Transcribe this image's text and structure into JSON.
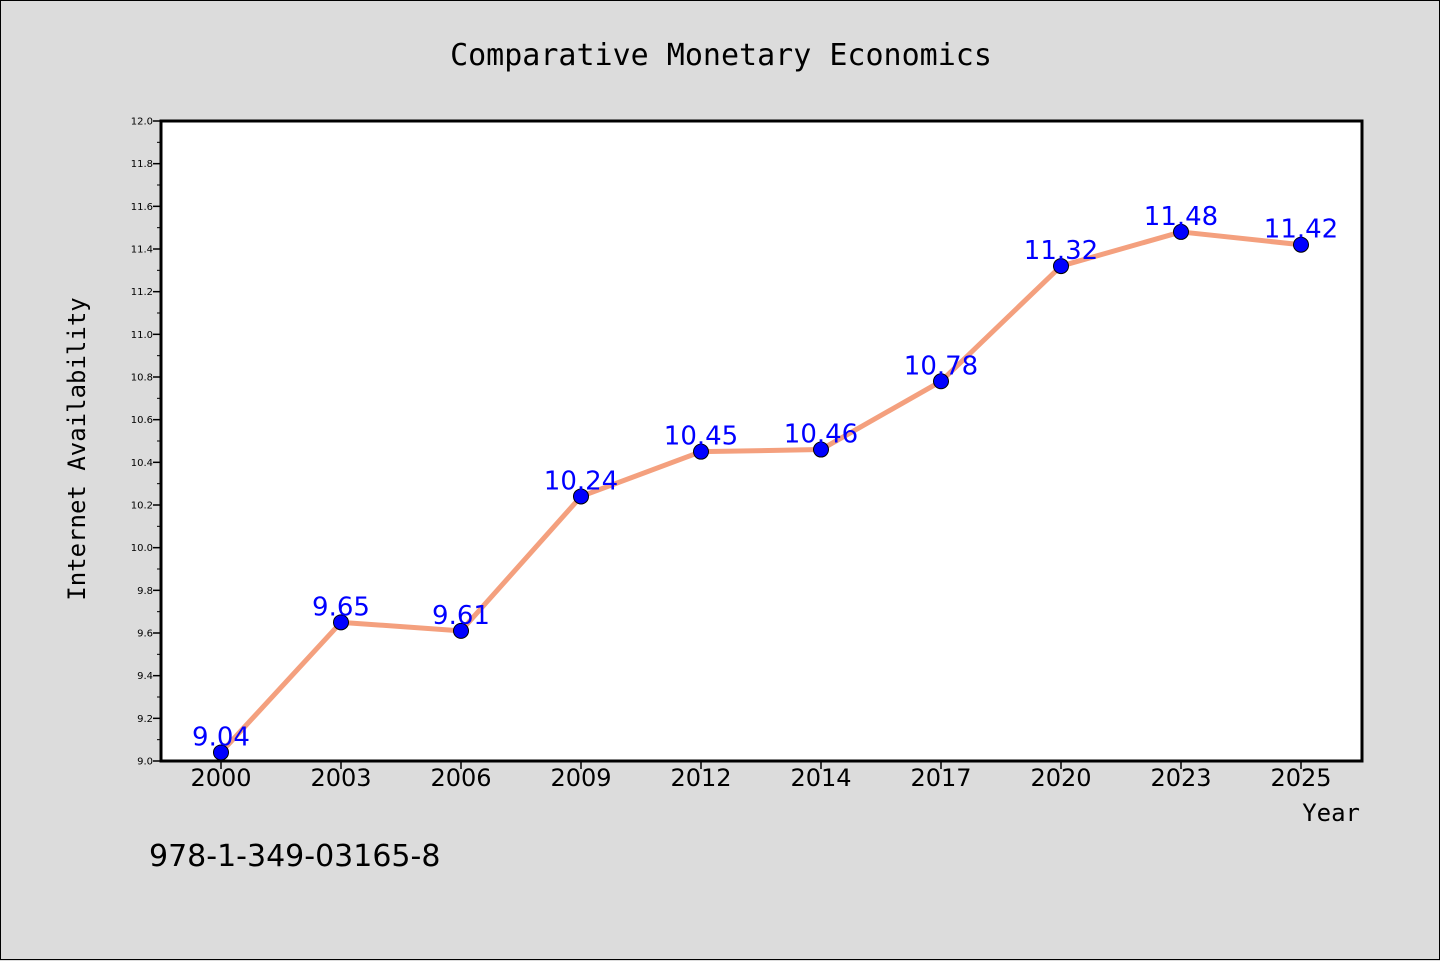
{
  "colors": {
    "background": "#dcdcdc",
    "plot_background": "#ffffff",
    "line": "#f4a07e",
    "marker": "#0000ff",
    "data_label": "#0000ff"
  },
  "footer": {
    "isbn": "978-1-349-03165-8"
  },
  "chart_data": {
    "type": "line",
    "title": "Comparative Monetary Economics",
    "xlabel": "Year",
    "ylabel": "Internet Availability",
    "categories": [
      "2000",
      "2003",
      "2006",
      "2009",
      "2012",
      "2014",
      "2017",
      "2020",
      "2023",
      "2025"
    ],
    "values": [
      9.04,
      9.65,
      9.61,
      10.24,
      10.45,
      10.46,
      10.78,
      11.32,
      11.48,
      11.42
    ],
    "data_labels": [
      "9.04",
      "9.65",
      "9.61",
      "10.24",
      "10.45",
      "10.46",
      "10.78",
      "11.32",
      "11.48",
      "11.42"
    ],
    "ylim": [
      9.0,
      12.0
    ],
    "yticks": [
      "9.0",
      "9.2",
      "9.4",
      "9.6",
      "9.8",
      "10.0",
      "10.2",
      "10.4",
      "10.6",
      "10.8",
      "11.0",
      "11.2",
      "11.4",
      "11.6",
      "11.8",
      "12.0"
    ],
    "grid": false,
    "legend": "none"
  }
}
